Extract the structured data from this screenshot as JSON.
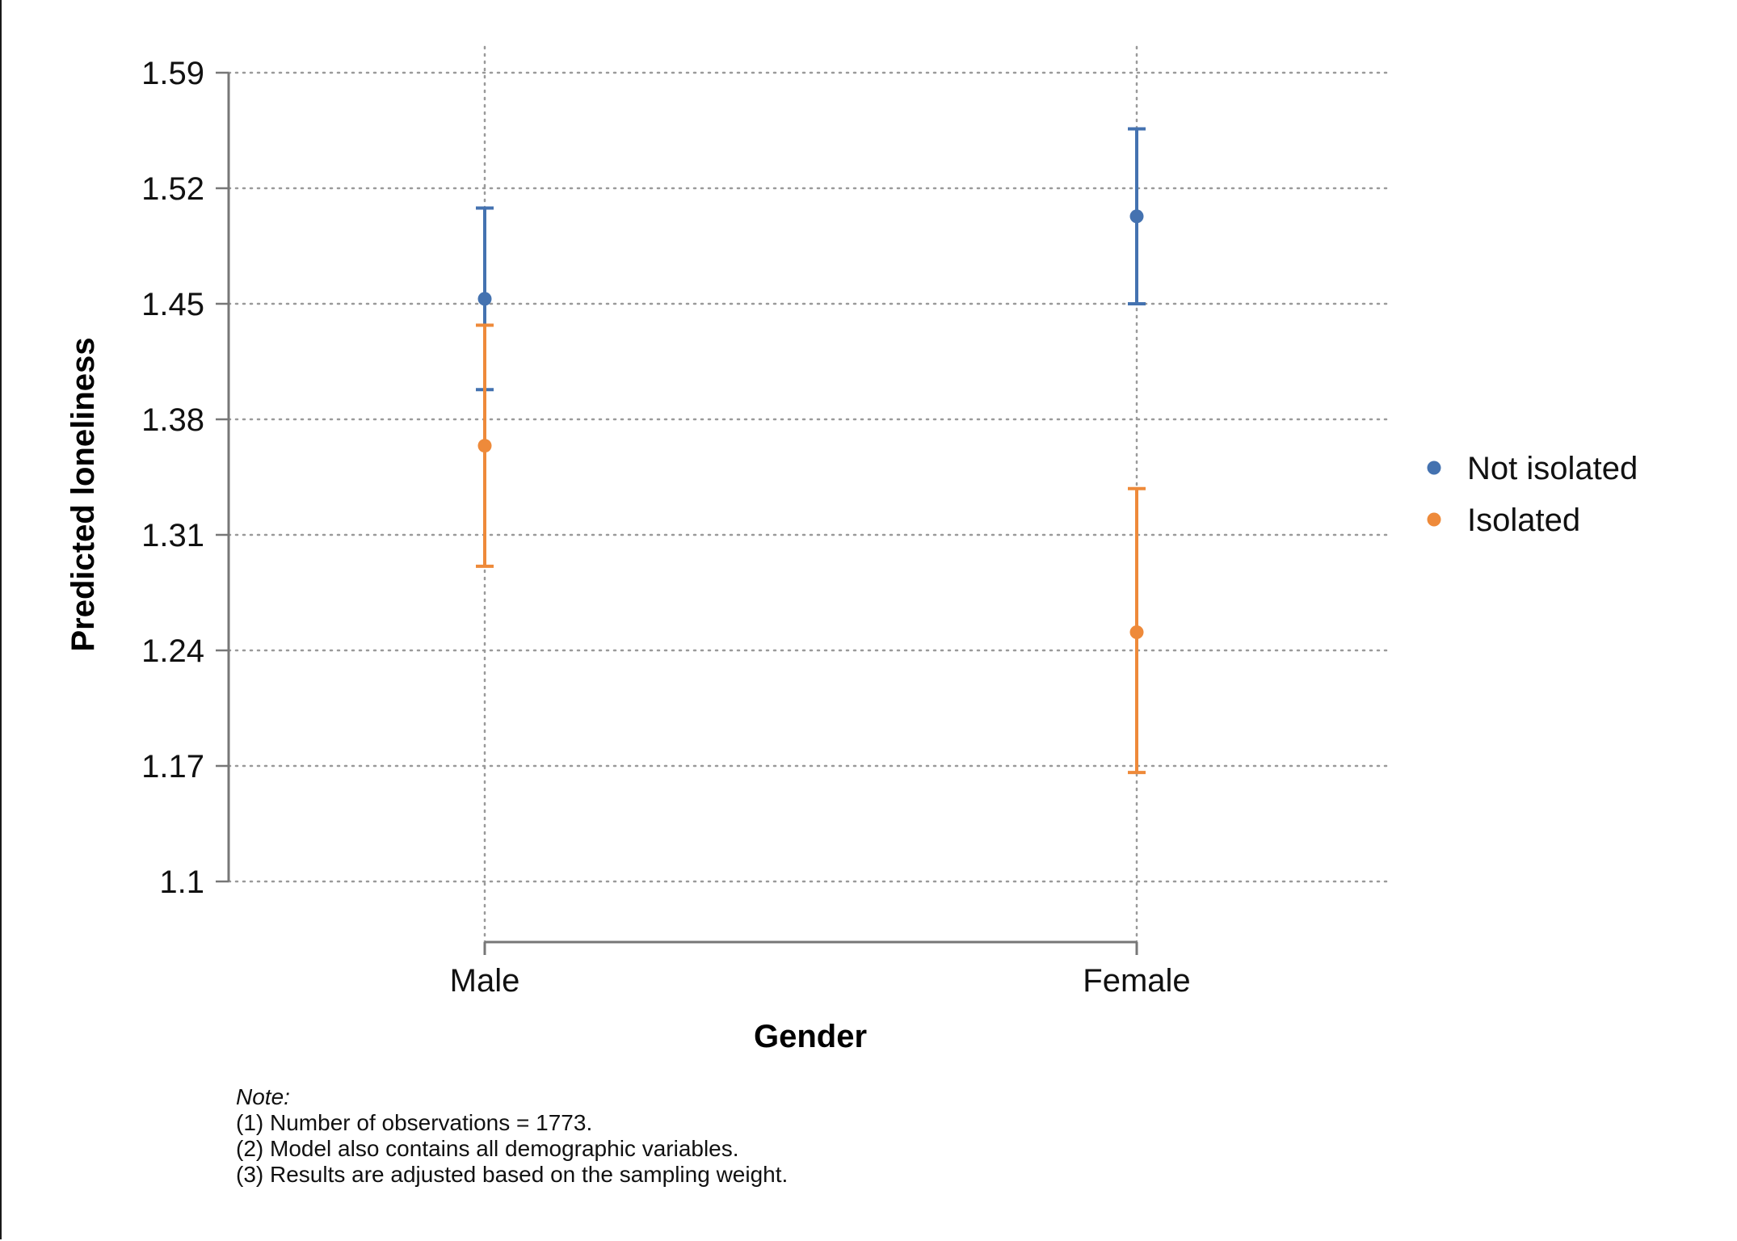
{
  "chart_data": {
    "type": "scatter",
    "subtype": "point-with-error-bars",
    "xlabel": "Gender",
    "ylabel": "Predicted loneliness",
    "categories": [
      "Male",
      "Female"
    ],
    "ylim": [
      1.1,
      1.59
    ],
    "yticks": [
      "1.1",
      "1.17",
      "1.24",
      "1.31",
      "1.38",
      "1.45",
      "1.52",
      "1.59"
    ],
    "grid": true,
    "grid_style": "dotted",
    "legend_position": "right",
    "series": [
      {
        "name": "Not isolated",
        "color": "#4472b0",
        "values": [
          1.453,
          1.503
        ],
        "ci_low": [
          1.398,
          1.45
        ],
        "ci_high": [
          1.508,
          1.556
        ]
      },
      {
        "name": "Isolated",
        "color": "#ee8a3a",
        "values": [
          1.364,
          1.251
        ],
        "ci_low": [
          1.291,
          1.166
        ],
        "ci_high": [
          1.437,
          1.338
        ]
      }
    ]
  },
  "notes": {
    "title": "Note:",
    "lines": [
      "(1) Number of observations = 1773.",
      "(2) Model also contains all demographic variables.",
      "(3) Results are adjusted based on the sampling weight."
    ]
  }
}
